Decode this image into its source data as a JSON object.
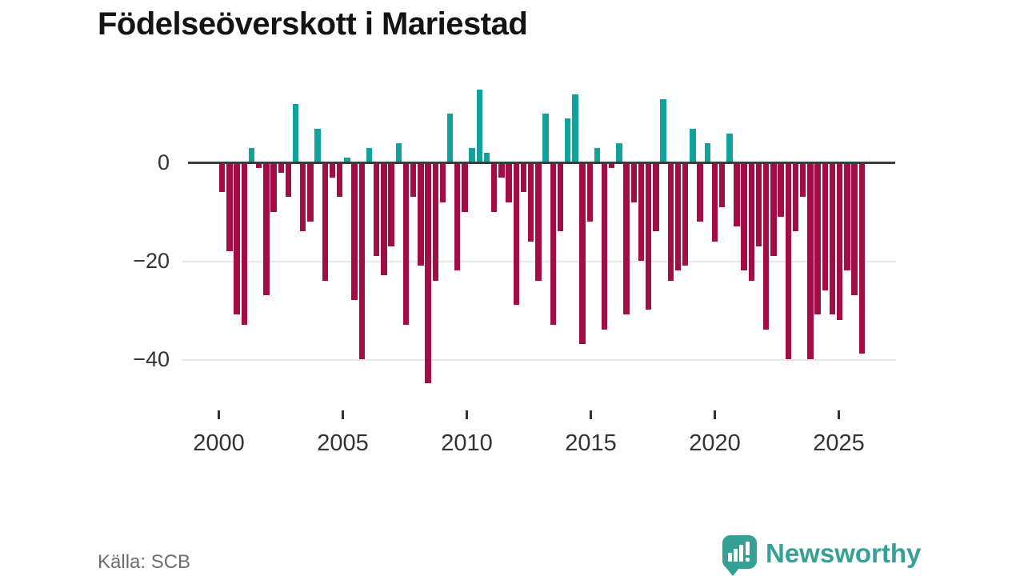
{
  "title": "Födelseöverskott i Mariestad",
  "source": "Källa: SCB",
  "logo": {
    "brand": "Newsworthy"
  },
  "chart_data": {
    "type": "bar",
    "title": "Födelseöverskott i Mariestad",
    "xlabel": "",
    "ylabel": "",
    "x_range": [
      2000,
      2026
    ],
    "x_tick_labels": [
      "2000",
      "2005",
      "2010",
      "2015",
      "2020",
      "2025"
    ],
    "y_tick_labels": [
      "0",
      "−20",
      "−40"
    ],
    "y_ticks": [
      0,
      -20,
      -40
    ],
    "ylim": [
      -47,
      16
    ],
    "grid": "horizontal-only",
    "legend": "none",
    "colors": {
      "positive": "#11a39b",
      "negative": "#a30d45",
      "axis": "#3b3b3b"
    },
    "values": [
      -6,
      -18,
      -31,
      -33,
      3,
      -1,
      -27,
      -10,
      -2,
      -7,
      12,
      -14,
      -12,
      7,
      -24,
      -3,
      -7,
      1,
      -28,
      -40,
      3,
      -19,
      -23,
      -17,
      4,
      -33,
      -7,
      -21,
      -45,
      -24,
      -8,
      10,
      -22,
      -10,
      3,
      15,
      2,
      -10,
      -3,
      -8,
      -29,
      -6,
      -16,
      -24,
      10,
      -33,
      -14,
      9,
      14,
      -37,
      -12,
      3,
      -34,
      -1,
      4,
      -31,
      -8,
      -20,
      -30,
      -14,
      13,
      -24,
      -22,
      -21,
      7,
      -12,
      4,
      -16,
      -9,
      6,
      -13,
      -22,
      -24,
      -17,
      -34,
      -19,
      -11,
      -40,
      -14,
      -7,
      -40,
      -31,
      -26,
      -31,
      -32,
      -22,
      -27,
      -39
    ]
  }
}
